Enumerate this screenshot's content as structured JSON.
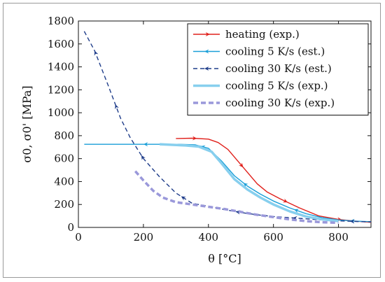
{
  "chart_data": {
    "type": "line",
    "xlabel": "θ [°C]",
    "ylabel": "σ0, σ0' [MPa]",
    "xlim": [
      0,
      900
    ],
    "ylim": [
      0,
      1800
    ],
    "x_ticks": [
      0,
      200,
      400,
      600,
      800
    ],
    "y_ticks": [
      0,
      200,
      400,
      600,
      800,
      1000,
      1200,
      1400,
      1600,
      1800
    ],
    "grid": false,
    "legend_position": "top-right",
    "series": [
      {
        "name": "heating (exp.)",
        "color": "#e0201b",
        "style": "solid-thin-arrows",
        "x": [
          300,
          350,
          400,
          430,
          460,
          490,
          520,
          550,
          580,
          620,
          680,
          740,
          800,
          850,
          900
        ],
        "y": [
          775,
          778,
          770,
          740,
          680,
          580,
          480,
          380,
          310,
          250,
          170,
          100,
          70,
          55,
          45
        ],
        "arrow_direction": "increasing-x"
      },
      {
        "name": "cooling 5 K/s (est.)",
        "color": "#1a9fd8",
        "style": "solid-thin-arrows",
        "x": [
          18,
          100,
          200,
          300,
          360,
          400,
          440,
          480,
          520,
          560,
          600,
          650,
          700,
          750,
          800,
          850,
          900
        ],
        "y": [
          725,
          725,
          725,
          725,
          720,
          690,
          580,
          450,
          360,
          290,
          230,
          170,
          120,
          85,
          65,
          55,
          50
        ],
        "arrow_direction": "decreasing-x"
      },
      {
        "name": "cooling 30 K/s (est.)",
        "color": "#1f3d8a",
        "style": "dashed-arrows",
        "x": [
          18,
          50,
          90,
          130,
          160,
          200,
          250,
          300,
          350,
          400,
          450,
          500,
          550,
          600,
          650,
          700,
          750,
          800,
          850,
          900
        ],
        "y": [
          1710,
          1540,
          1250,
          950,
          780,
          600,
          440,
          300,
          210,
          185,
          155,
          130,
          110,
          95,
          85,
          75,
          65,
          58,
          52,
          48
        ],
        "arrow_direction": "decreasing-x"
      },
      {
        "name": "cooling 5 K/s (exp.)",
        "color": "#87cfee",
        "style": "solid-thick",
        "x": [
          250,
          290,
          330,
          370,
          410,
          440,
          480,
          520,
          560,
          600,
          650,
          700,
          750,
          800
        ],
        "y": [
          725,
          720,
          715,
          705,
          660,
          560,
          420,
          330,
          260,
          200,
          140,
          95,
          70,
          55
        ]
      },
      {
        "name": "cooling 30 K/s (exp.)",
        "color": "#9a98da",
        "style": "dashed-thick",
        "x": [
          175,
          200,
          230,
          260,
          300,
          350,
          400,
          450,
          500,
          550,
          600,
          650,
          700,
          750,
          800
        ],
        "y": [
          490,
          410,
          320,
          260,
          220,
          200,
          180,
          160,
          135,
          110,
          90,
          70,
          55,
          45,
          40
        ]
      }
    ]
  }
}
